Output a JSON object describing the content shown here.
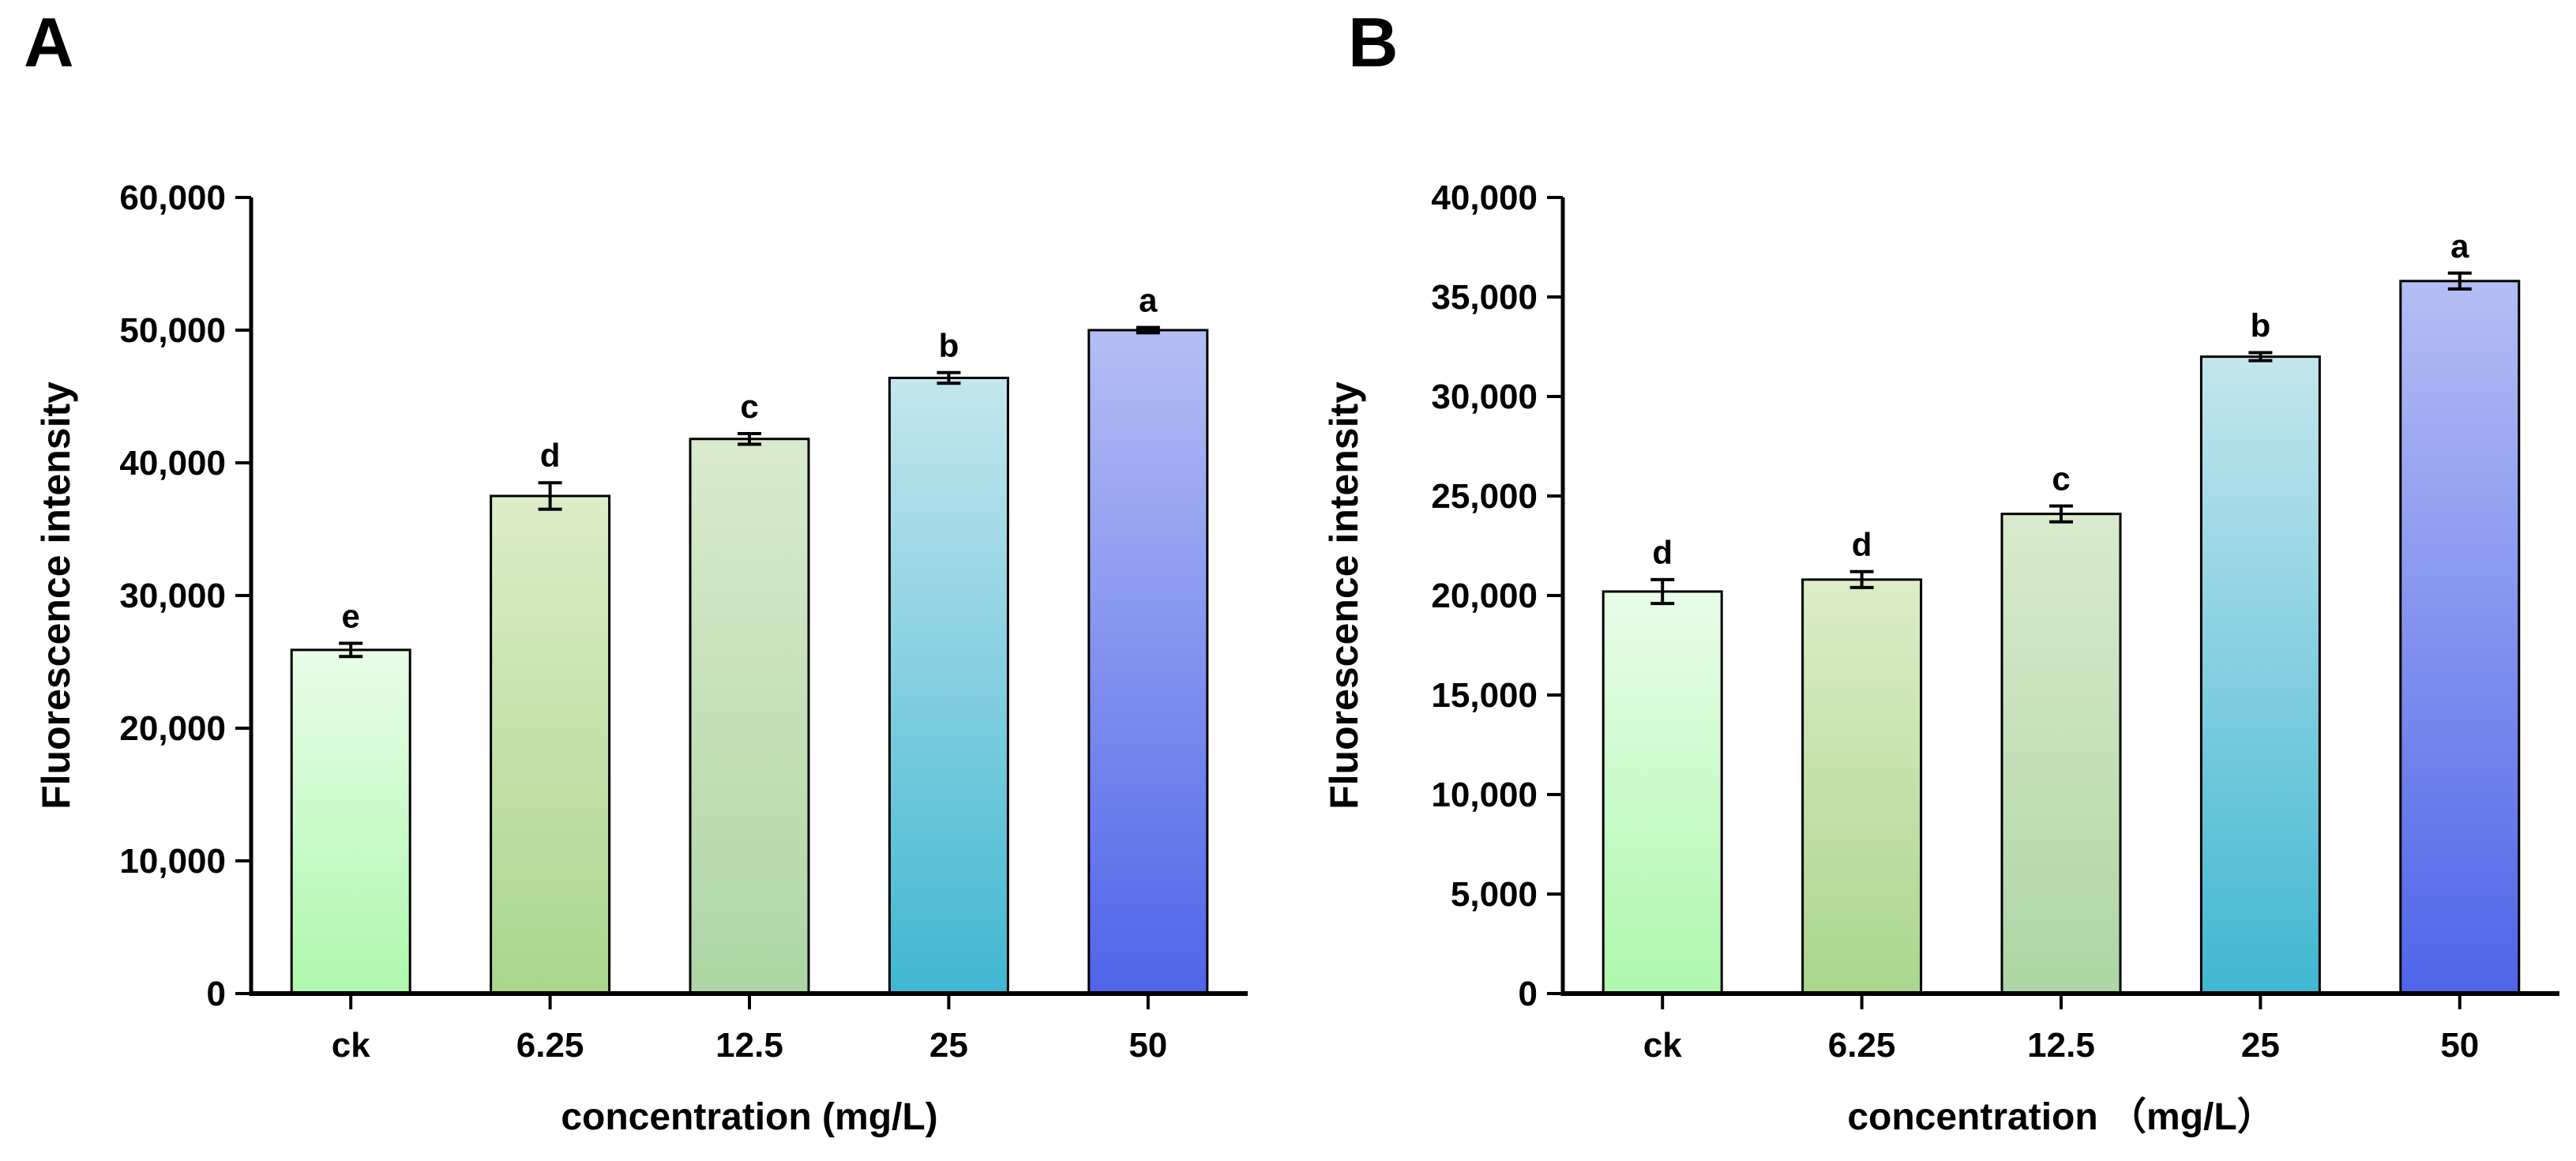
{
  "figure": {
    "background": "#ffffff",
    "axis_color": "#000000",
    "text_color": "#000000"
  },
  "chart_data": [
    {
      "type": "bar",
      "panel_letter": "A",
      "title": "",
      "xlabel": "concentration (mg/L)",
      "ylabel": "Fluorescence intensity",
      "categories": [
        "ck",
        "6.25",
        "12.5",
        "25",
        "50"
      ],
      "values": [
        25900,
        37500,
        41800,
        46400,
        50000
      ],
      "errors": [
        500,
        1000,
        400,
        400,
        200
      ],
      "sig_letters": [
        "e",
        "d",
        "c",
        "b",
        "a"
      ],
      "ylim": [
        0,
        60000
      ],
      "ytick_step": 10000,
      "ytick_labels": [
        "0",
        "10,000",
        "20,000",
        "30,000",
        "40,000",
        "50,000",
        "60,000"
      ],
      "grid": "off",
      "legend": "none",
      "bar_colors": [
        {
          "top": "#e8fde7",
          "bottom": "#aef7ae"
        },
        {
          "top": "#dcedc8",
          "bottom": "#aad68d"
        },
        {
          "top": "#d9ebcc",
          "bottom": "#add6a4"
        },
        {
          "top": "#c4e6ed",
          "bottom": "#40b7d2"
        },
        {
          "top": "#b4bef4",
          "bottom": "#4f64e9"
        }
      ]
    },
    {
      "type": "bar",
      "panel_letter": "B",
      "title": "",
      "xlabel": "concentration （mg/L）",
      "ylabel": "Fluorescence intensity",
      "categories": [
        "ck",
        "6.25",
        "12.5",
        "25",
        "50"
      ],
      "values": [
        20200,
        20800,
        24100,
        32000,
        35800
      ],
      "errors": [
        600,
        400,
        400,
        200,
        400
      ],
      "sig_letters": [
        "d",
        "d",
        "c",
        "b",
        "a"
      ],
      "ylim": [
        0,
        40000
      ],
      "ytick_step": 5000,
      "ytick_labels": [
        "0",
        "5,000",
        "10,000",
        "15,000",
        "20,000",
        "25,000",
        "30,000",
        "35,000",
        "40,000"
      ],
      "grid": "off",
      "legend": "none",
      "bar_colors": [
        {
          "top": "#e8fde7",
          "bottom": "#aef7ae"
        },
        {
          "top": "#dcedc8",
          "bottom": "#aad68d"
        },
        {
          "top": "#d9ebcc",
          "bottom": "#add6a4"
        },
        {
          "top": "#c4e6ed",
          "bottom": "#40b7d2"
        },
        {
          "top": "#b4bef4",
          "bottom": "#4f64e9"
        }
      ]
    }
  ]
}
